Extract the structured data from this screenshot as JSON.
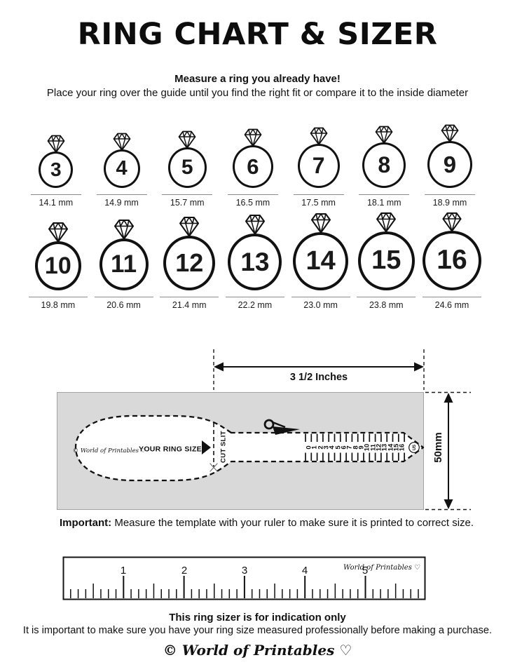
{
  "colors": {
    "ink": "#111111",
    "panel_gray": "#d9d9d9",
    "underline_gray": "#8a8a8a"
  },
  "icons": {
    "ring": "diamond-ring-icon",
    "scissors": "scissors-icon",
    "pointer": "right-triangle-icon",
    "heart": "♡"
  },
  "header": {
    "title": "RING CHART & SIZER",
    "subtitle": "Measure a ring you already have!",
    "instruction": "Place your ring over the guide until you find the right fit or compare it to the inside diameter"
  },
  "rings": {
    "row1": [
      {
        "size": "3",
        "diameter": "14.1 mm"
      },
      {
        "size": "4",
        "diameter": "14.9 mm"
      },
      {
        "size": "5",
        "diameter": "15.7 mm"
      },
      {
        "size": "6",
        "diameter": "16.5 mm"
      },
      {
        "size": "7",
        "diameter": "17.5 mm"
      },
      {
        "size": "8",
        "diameter": "18.1 mm"
      },
      {
        "size": "9",
        "diameter": "18.9 mm"
      }
    ],
    "row2": [
      {
        "size": "10",
        "diameter": "19.8 mm"
      },
      {
        "size": "11",
        "diameter": "20.6 mm"
      },
      {
        "size": "12",
        "diameter": "21.4 mm"
      },
      {
        "size": "13",
        "diameter": "22.2 mm"
      },
      {
        "size": "14",
        "diameter": "23.0 mm"
      },
      {
        "size": "15",
        "diameter": "23.8 mm"
      },
      {
        "size": "16",
        "diameter": "24.6 mm"
      }
    ]
  },
  "sizer": {
    "width_label": "3 1/2 Inches",
    "height_label": "50mm",
    "brand": "© World of Printables ♡",
    "your_ring_size_label": "YOUR RING SIZE",
    "cut_slit_label": "CUT SLIT",
    "us_label": "US",
    "scale_numbers": [
      "0",
      "1",
      "2",
      "3",
      "4",
      "5",
      "6",
      "7",
      "8",
      "9",
      "10",
      "11",
      "12",
      "13",
      "14",
      "15",
      "16"
    ]
  },
  "important": {
    "label": "Important:",
    "text": "Measure the template with your ruler to make sure it is printed to correct size."
  },
  "ruler": {
    "numbers": [
      "1",
      "2",
      "3",
      "4",
      "5"
    ],
    "brand": "World of Printables ♡"
  },
  "footer": {
    "heading": "This ring sizer is for indication only",
    "text": "It is important to make sure you have your ring size measured professionally before making a purchase.",
    "brand": "© World of Printables ♡"
  }
}
